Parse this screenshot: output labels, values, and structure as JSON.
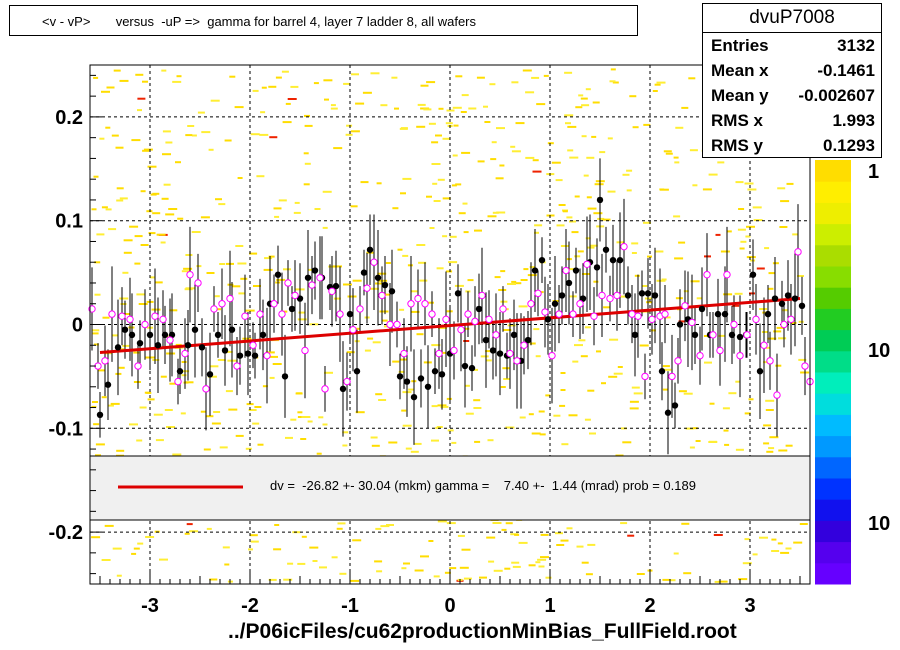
{
  "title": "<v - vP>       versus  -uP =>  gamma for barrel 4, layer 7 ladder 8, all wafers",
  "stats": {
    "name": "dvuP7008",
    "rows": [
      {
        "label": "Entries",
        "value": "3132"
      },
      {
        "label": "Mean x",
        "value": "-0.1461"
      },
      {
        "label": "Mean y",
        "value": "-0.002607"
      },
      {
        "label": "RMS x",
        "value": "1.993"
      },
      {
        "label": "RMS y",
        "value": "0.1293"
      }
    ]
  },
  "legend": {
    "fit_text": "dv =  -26.82 +- 30.04 (mkm) gamma =    7.40 +-  1.44 (mrad) prob = 0.189",
    "line_color": "#dd0000"
  },
  "footer": "../P06icFiles/cu62productionMinBias_FullField.root",
  "colorbar": {
    "labels": [
      "1",
      "10",
      "10"
    ]
  },
  "chart_data": {
    "type": "scatter",
    "xlim": [
      -3.6,
      3.6
    ],
    "ylim": [
      -0.25,
      0.25
    ],
    "x_ticks": [
      -3,
      -2,
      -1,
      0,
      1,
      2,
      3
    ],
    "y_ticks": [
      -0.2,
      -0.1,
      0,
      0.1,
      0.2
    ],
    "x_tick_labels": [
      "-3",
      "-2",
      "-1",
      "0",
      "1",
      "2",
      "3"
    ],
    "y_tick_labels": [
      "-0.2",
      "-0.1",
      "0",
      "0.1",
      "0.2"
    ],
    "grid": true,
    "fit_line": {
      "x": [
        -3.5,
        3.5
      ],
      "y": [
        -0.027,
        0.025
      ],
      "color": "#dd0000"
    },
    "series": [
      {
        "marker": "filled-circle",
        "color": "#000000",
        "points": [
          [
            -3.5,
            -0.087
          ],
          [
            -3.42,
            -0.058
          ],
          [
            -3.32,
            -0.022
          ],
          [
            -3.25,
            -0.005
          ],
          [
            -3.18,
            -0.01
          ],
          [
            -3.1,
            -0.018
          ],
          [
            -3.0,
            -0.01
          ],
          [
            -2.92,
            -0.02
          ],
          [
            -2.85,
            -0.01
          ],
          [
            -2.78,
            -0.01
          ],
          [
            -2.7,
            -0.045
          ],
          [
            -2.62,
            -0.02
          ],
          [
            -2.55,
            -0.005
          ],
          [
            -2.48,
            -0.022
          ],
          [
            -2.4,
            -0.048
          ],
          [
            -2.32,
            -0.01
          ],
          [
            -2.25,
            -0.025
          ],
          [
            -2.18,
            -0.005
          ],
          [
            -2.1,
            -0.03
          ],
          [
            -2.02,
            -0.028
          ],
          [
            -1.95,
            -0.03
          ],
          [
            -1.87,
            -0.01
          ],
          [
            -1.8,
            0.02
          ],
          [
            -1.72,
            0.048
          ],
          [
            -1.65,
            -0.05
          ],
          [
            -1.58,
            0.015
          ],
          [
            -1.5,
            0.025
          ],
          [
            -1.42,
            0.045
          ],
          [
            -1.35,
            0.052
          ],
          [
            -1.28,
            0.045
          ],
          [
            -1.2,
            0.036
          ],
          [
            -1.14,
            0.037
          ],
          [
            -1.07,
            -0.062
          ],
          [
            -1.0,
            0.01
          ],
          [
            -0.93,
            -0.045
          ],
          [
            -0.86,
            0.05
          ],
          [
            -0.8,
            0.072
          ],
          [
            -0.72,
            0.045
          ],
          [
            -0.65,
            0.038
          ],
          [
            -0.58,
            0.032
          ],
          [
            -0.5,
            -0.05
          ],
          [
            -0.43,
            -0.055
          ],
          [
            -0.36,
            -0.07
          ],
          [
            -0.29,
            -0.052
          ],
          [
            -0.22,
            -0.06
          ],
          [
            -0.15,
            -0.045
          ],
          [
            -0.08,
            -0.048
          ],
          [
            0.0,
            -0.028
          ],
          [
            0.08,
            0.03
          ],
          [
            0.15,
            -0.04
          ],
          [
            0.22,
            -0.042
          ],
          [
            0.29,
            0.015
          ],
          [
            0.36,
            -0.015
          ],
          [
            0.43,
            -0.025
          ],
          [
            0.5,
            -0.028
          ],
          [
            0.57,
            -0.03
          ],
          [
            0.64,
            -0.01
          ],
          [
            0.71,
            -0.035
          ],
          [
            0.78,
            -0.015
          ],
          [
            0.85,
            0.052
          ],
          [
            0.92,
            0.062
          ],
          [
            0.98,
            0.005
          ],
          [
            1.05,
            0.02
          ],
          [
            1.12,
            0.028
          ],
          [
            1.19,
            0.04
          ],
          [
            1.26,
            0.052
          ],
          [
            1.33,
            0.025
          ],
          [
            1.4,
            0.06
          ],
          [
            1.47,
            0.055
          ],
          [
            1.5,
            0.12
          ],
          [
            1.56,
            0.072
          ],
          [
            1.63,
            0.062
          ],
          [
            1.7,
            0.062
          ],
          [
            1.78,
            0.028
          ],
          [
            1.85,
            -0.01
          ],
          [
            1.92,
            0.03
          ],
          [
            1.98,
            0.03
          ],
          [
            2.05,
            0.028
          ],
          [
            2.12,
            -0.045
          ],
          [
            2.18,
            -0.085
          ],
          [
            2.25,
            -0.078
          ],
          [
            2.3,
            0.0
          ],
          [
            2.38,
            0.005
          ],
          [
            2.45,
            -0.01
          ],
          [
            2.52,
            0.015
          ],
          [
            2.6,
            -0.01
          ],
          [
            2.68,
            0.01
          ],
          [
            2.75,
            0.01
          ],
          [
            2.82,
            -0.01
          ],
          [
            2.9,
            -0.012
          ],
          [
            2.96,
            -0.01
          ],
          [
            3.03,
            0.048
          ],
          [
            3.1,
            -0.045
          ],
          [
            3.18,
            0.01
          ],
          [
            3.25,
            0.025
          ],
          [
            3.32,
            0.02
          ],
          [
            3.38,
            0.028
          ],
          [
            3.45,
            0.025
          ],
          [
            3.52,
            0.018
          ]
        ]
      },
      {
        "marker": "open-circle",
        "color": "#ff00ff",
        "points": [
          [
            -3.58,
            0.015
          ],
          [
            -3.52,
            -0.04
          ],
          [
            -3.45,
            -0.035
          ],
          [
            -3.38,
            0.01
          ],
          [
            -3.28,
            0.008
          ],
          [
            -3.2,
            0.005
          ],
          [
            -3.12,
            -0.04
          ],
          [
            -3.05,
            0.0
          ],
          [
            -2.95,
            0.008
          ],
          [
            -2.87,
            0.005
          ],
          [
            -2.8,
            -0.015
          ],
          [
            -2.72,
            -0.055
          ],
          [
            -2.65,
            -0.028
          ],
          [
            -2.6,
            0.048
          ],
          [
            -2.52,
            0.04
          ],
          [
            -2.44,
            -0.062
          ],
          [
            -2.36,
            0.015
          ],
          [
            -2.28,
            0.02
          ],
          [
            -2.2,
            0.025
          ],
          [
            -2.13,
            -0.04
          ],
          [
            -2.05,
            0.008
          ],
          [
            -1.97,
            -0.02
          ],
          [
            -1.9,
            0.01
          ],
          [
            -1.83,
            -0.03
          ],
          [
            -1.76,
            0.02
          ],
          [
            -1.68,
            0.01
          ],
          [
            -1.62,
            0.04
          ],
          [
            -1.55,
            0.028
          ],
          [
            -1.45,
            -0.025
          ],
          [
            -1.38,
            0.038
          ],
          [
            -1.3,
            0.045
          ],
          [
            -1.25,
            -0.062
          ],
          [
            -1.18,
            0.032
          ],
          [
            -1.1,
            0.01
          ],
          [
            -1.03,
            -0.055
          ],
          [
            -0.97,
            -0.005
          ],
          [
            -0.9,
            0.015
          ],
          [
            -0.83,
            0.035
          ],
          [
            -0.76,
            0.06
          ],
          [
            -0.68,
            0.028
          ],
          [
            -0.6,
            0.0
          ],
          [
            -0.53,
            0.0
          ],
          [
            -0.46,
            -0.028
          ],
          [
            -0.39,
            0.02
          ],
          [
            -0.32,
            0.025
          ],
          [
            -0.25,
            0.02
          ],
          [
            -0.18,
            0.01
          ],
          [
            -0.11,
            -0.028
          ],
          [
            -0.04,
            0.005
          ],
          [
            0.04,
            -0.025
          ],
          [
            0.11,
            -0.005
          ],
          [
            0.18,
            0.01
          ],
          [
            0.25,
            0.003
          ],
          [
            0.32,
            0.028
          ],
          [
            0.39,
            0.005
          ],
          [
            0.46,
            -0.01
          ],
          [
            0.53,
            0.015
          ],
          [
            0.6,
            -0.028
          ],
          [
            0.67,
            -0.035
          ],
          [
            0.74,
            -0.02
          ],
          [
            0.81,
            0.02
          ],
          [
            0.88,
            0.03
          ],
          [
            0.95,
            0.012
          ],
          [
            1.02,
            -0.03
          ],
          [
            1.09,
            0.01
          ],
          [
            1.16,
            0.052
          ],
          [
            1.23,
            0.01
          ],
          [
            1.3,
            0.02
          ],
          [
            1.37,
            0.058
          ],
          [
            1.44,
            0.008
          ],
          [
            1.52,
            0.028
          ],
          [
            1.6,
            0.025
          ],
          [
            1.67,
            0.028
          ],
          [
            1.74,
            0.075
          ],
          [
            1.82,
            0.01
          ],
          [
            1.88,
            0.008
          ],
          [
            1.95,
            -0.05
          ],
          [
            2.02,
            0.005
          ],
          [
            2.1,
            0.008
          ],
          [
            2.15,
            0.01
          ],
          [
            2.22,
            -0.05
          ],
          [
            2.28,
            -0.035
          ],
          [
            2.35,
            0.018
          ],
          [
            2.42,
            0.002
          ],
          [
            2.5,
            -0.03
          ],
          [
            2.57,
            0.048
          ],
          [
            2.63,
            -0.01
          ],
          [
            2.7,
            -0.025
          ],
          [
            2.77,
            0.048
          ],
          [
            2.84,
            0.0
          ],
          [
            2.9,
            -0.03
          ],
          [
            2.97,
            -0.01
          ],
          [
            3.06,
            0.005
          ],
          [
            3.14,
            -0.02
          ],
          [
            3.2,
            -0.035
          ],
          [
            3.27,
            -0.068
          ],
          [
            3.34,
            0.0
          ],
          [
            3.41,
            0.005
          ],
          [
            3.48,
            0.07
          ],
          [
            3.55,
            -0.04
          ],
          [
            3.6,
            -0.055
          ]
        ]
      }
    ]
  }
}
